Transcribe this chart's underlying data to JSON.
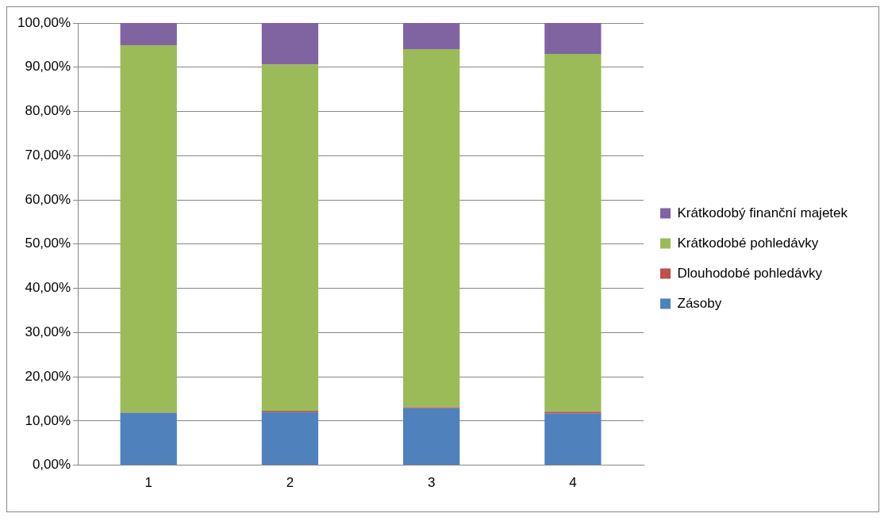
{
  "chart_data": {
    "type": "bar",
    "stacked": true,
    "categories": [
      "1",
      "2",
      "3",
      "4"
    ],
    "series": [
      {
        "name": "Zásoby",
        "color": "#4f81bd",
        "values": [
          11.8,
          12.0,
          12.9,
          11.7
        ]
      },
      {
        "name": "Dlouhodobé pohledávky",
        "color": "#c0504d",
        "values": [
          0.1,
          0.3,
          0.2,
          0.4
        ]
      },
      {
        "name": "Krátkodobé pohledávky",
        "color": "#9bbb59",
        "values": [
          83.1,
          78.3,
          81.0,
          80.9
        ]
      },
      {
        "name": "Krátkodobý finanční majetek",
        "color": "#8064a2",
        "values": [
          5.0,
          9.4,
          5.9,
          7.0
        ]
      }
    ],
    "ylim": [
      0,
      100
    ],
    "yticks": [
      {
        "value": 0,
        "label": "0,00%"
      },
      {
        "value": 10,
        "label": "10,00%"
      },
      {
        "value": 20,
        "label": "20,00%"
      },
      {
        "value": 30,
        "label": "30,00%"
      },
      {
        "value": 40,
        "label": "40,00%"
      },
      {
        "value": 50,
        "label": "50,00%"
      },
      {
        "value": 60,
        "label": "60,00%"
      },
      {
        "value": 70,
        "label": "70,00%"
      },
      {
        "value": 80,
        "label": "80,00%"
      },
      {
        "value": 90,
        "label": "90,00%"
      },
      {
        "value": 100,
        "label": "100,00%"
      }
    ],
    "grid": "y",
    "legend": "right"
  }
}
